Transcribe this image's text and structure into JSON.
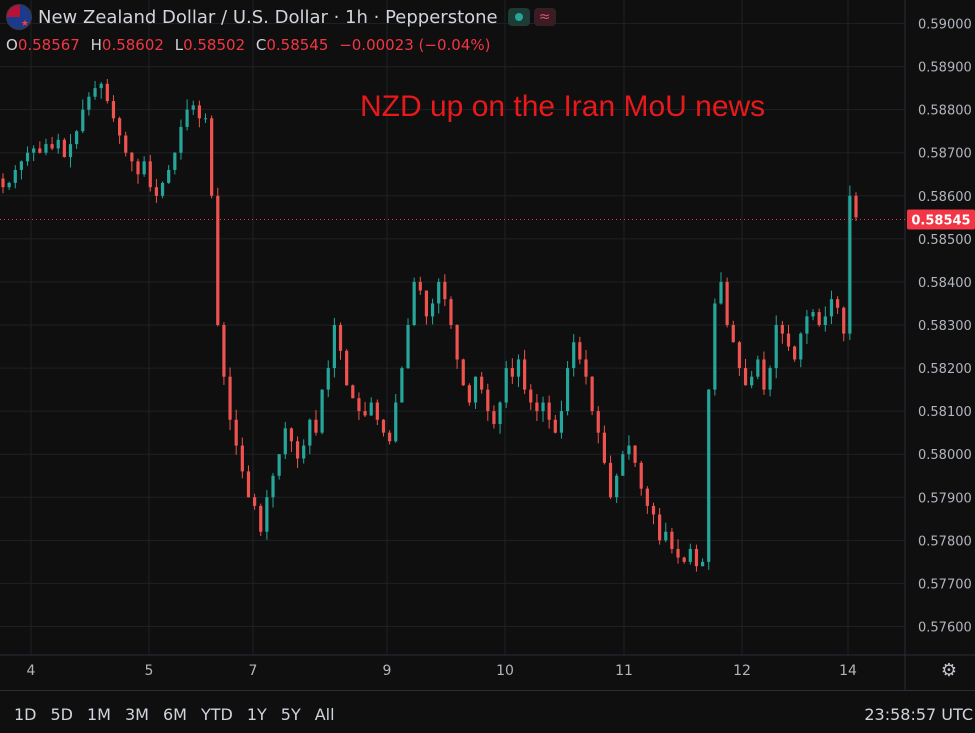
{
  "header": {
    "title": "New Zealand Dollar / U.S. Dollar · 1h · Pepperstone",
    "status_icon": "green-dot-icon",
    "wave_icon": "wave-icon"
  },
  "ohlc": {
    "o_label": "O",
    "o_value": "0.58567",
    "h_label": "H",
    "h_value": "0.58602",
    "l_label": "L",
    "l_value": "0.58502",
    "c_label": "C",
    "c_value": "0.58545",
    "change": "−0.00023 (−0.04%)"
  },
  "annotation": "NZD up on the Iran MoU news",
  "bottom": {
    "ranges": [
      "1D",
      "5D",
      "1M",
      "3M",
      "6M",
      "YTD",
      "1Y",
      "5Y",
      "All"
    ],
    "clock": "23:58:57 UTC"
  },
  "colors": {
    "up": "#26a69a",
    "down": "#ef5350",
    "background": "#0f0f0f",
    "price_label": "#f23645",
    "annotation": "#e8191b"
  },
  "chart_data": {
    "type": "candlestick",
    "title": "New Zealand Dollar / U.S. Dollar · 1h · Pepperstone",
    "ylim": [
      0.5755,
      0.5905
    ],
    "yticks": [
      "0.59000",
      "0.58900",
      "0.58800",
      "0.58700",
      "0.58600",
      "0.58500",
      "0.58400",
      "0.58300",
      "0.58200",
      "0.58100",
      "0.58000",
      "0.57900",
      "0.57800",
      "0.57700",
      "0.57600"
    ],
    "xticks": [
      "4",
      "5",
      "7",
      "9",
      "10",
      "11",
      "12",
      "14"
    ],
    "current_price": "0.58545",
    "grid": true,
    "close_path": [
      [
        0.5862,
        0.5863,
        0.5866,
        0.5868,
        0.587,
        0.5871,
        0.587,
        0.5872,
        0.5871,
        0.5873,
        0.5869,
        0.5872,
        0.5875,
        0.588,
        0.5883,
        0.5885,
        0.5886,
        0.5882,
        0.5878,
        0.5874,
        0.587,
        0.5868,
        0.5865,
        0.5868,
        0.5862,
        0.586,
        0.5863,
        0.5866,
        0.587,
        0.5876,
        0.588,
        0.5881,
        0.5878
      ],
      [
        0.5878,
        0.586,
        0.583,
        0.5818,
        0.5808,
        0.5802,
        0.5796,
        0.579,
        0.5788,
        0.5782,
        0.579,
        0.5795,
        0.58,
        0.5806,
        0.5803,
        0.5799,
        0.5802,
        0.5808,
        0.5805,
        0.5815,
        0.582,
        0.583,
        0.5824,
        0.5816,
        0.5813,
        0.581,
        0.5809,
        0.5812,
        0.5808,
        0.5805,
        0.5803,
        0.5812,
        0.582,
        0.583,
        0.584,
        0.5838,
        0.5832,
        0.5835,
        0.584,
        0.5836,
        0.583,
        0.5822,
        0.5816,
        0.5812,
        0.5818,
        0.5815,
        0.581,
        0.5807,
        0.5812,
        0.582,
        0.5818,
        0.5822,
        0.5815,
        0.5812,
        0.581,
        0.5812,
        0.5808,
        0.5805,
        0.581,
        0.582,
        0.5826,
        0.5822,
        0.5818,
        0.581,
        0.5805,
        0.5798,
        0.579,
        0.5795,
        0.58,
        0.5802,
        0.5798,
        0.5792,
        0.5788,
        0.5786,
        0.578,
        0.5782,
        0.5778,
        0.5776,
        0.5775,
        0.5778,
        0.5774,
        0.5775,
        0.5815,
        0.5835,
        0.584,
        0.583,
        0.5826,
        0.582,
        0.5816,
        0.5818,
        0.5822,
        0.5815,
        0.582,
        0.583,
        0.5828,
        0.5825,
        0.5822,
        0.5828,
        0.5832,
        0.5833,
        0.583,
        0.5832,
        0.5836,
        0.5834,
        0.5828,
        0.586,
        0.5855
      ]
    ]
  }
}
